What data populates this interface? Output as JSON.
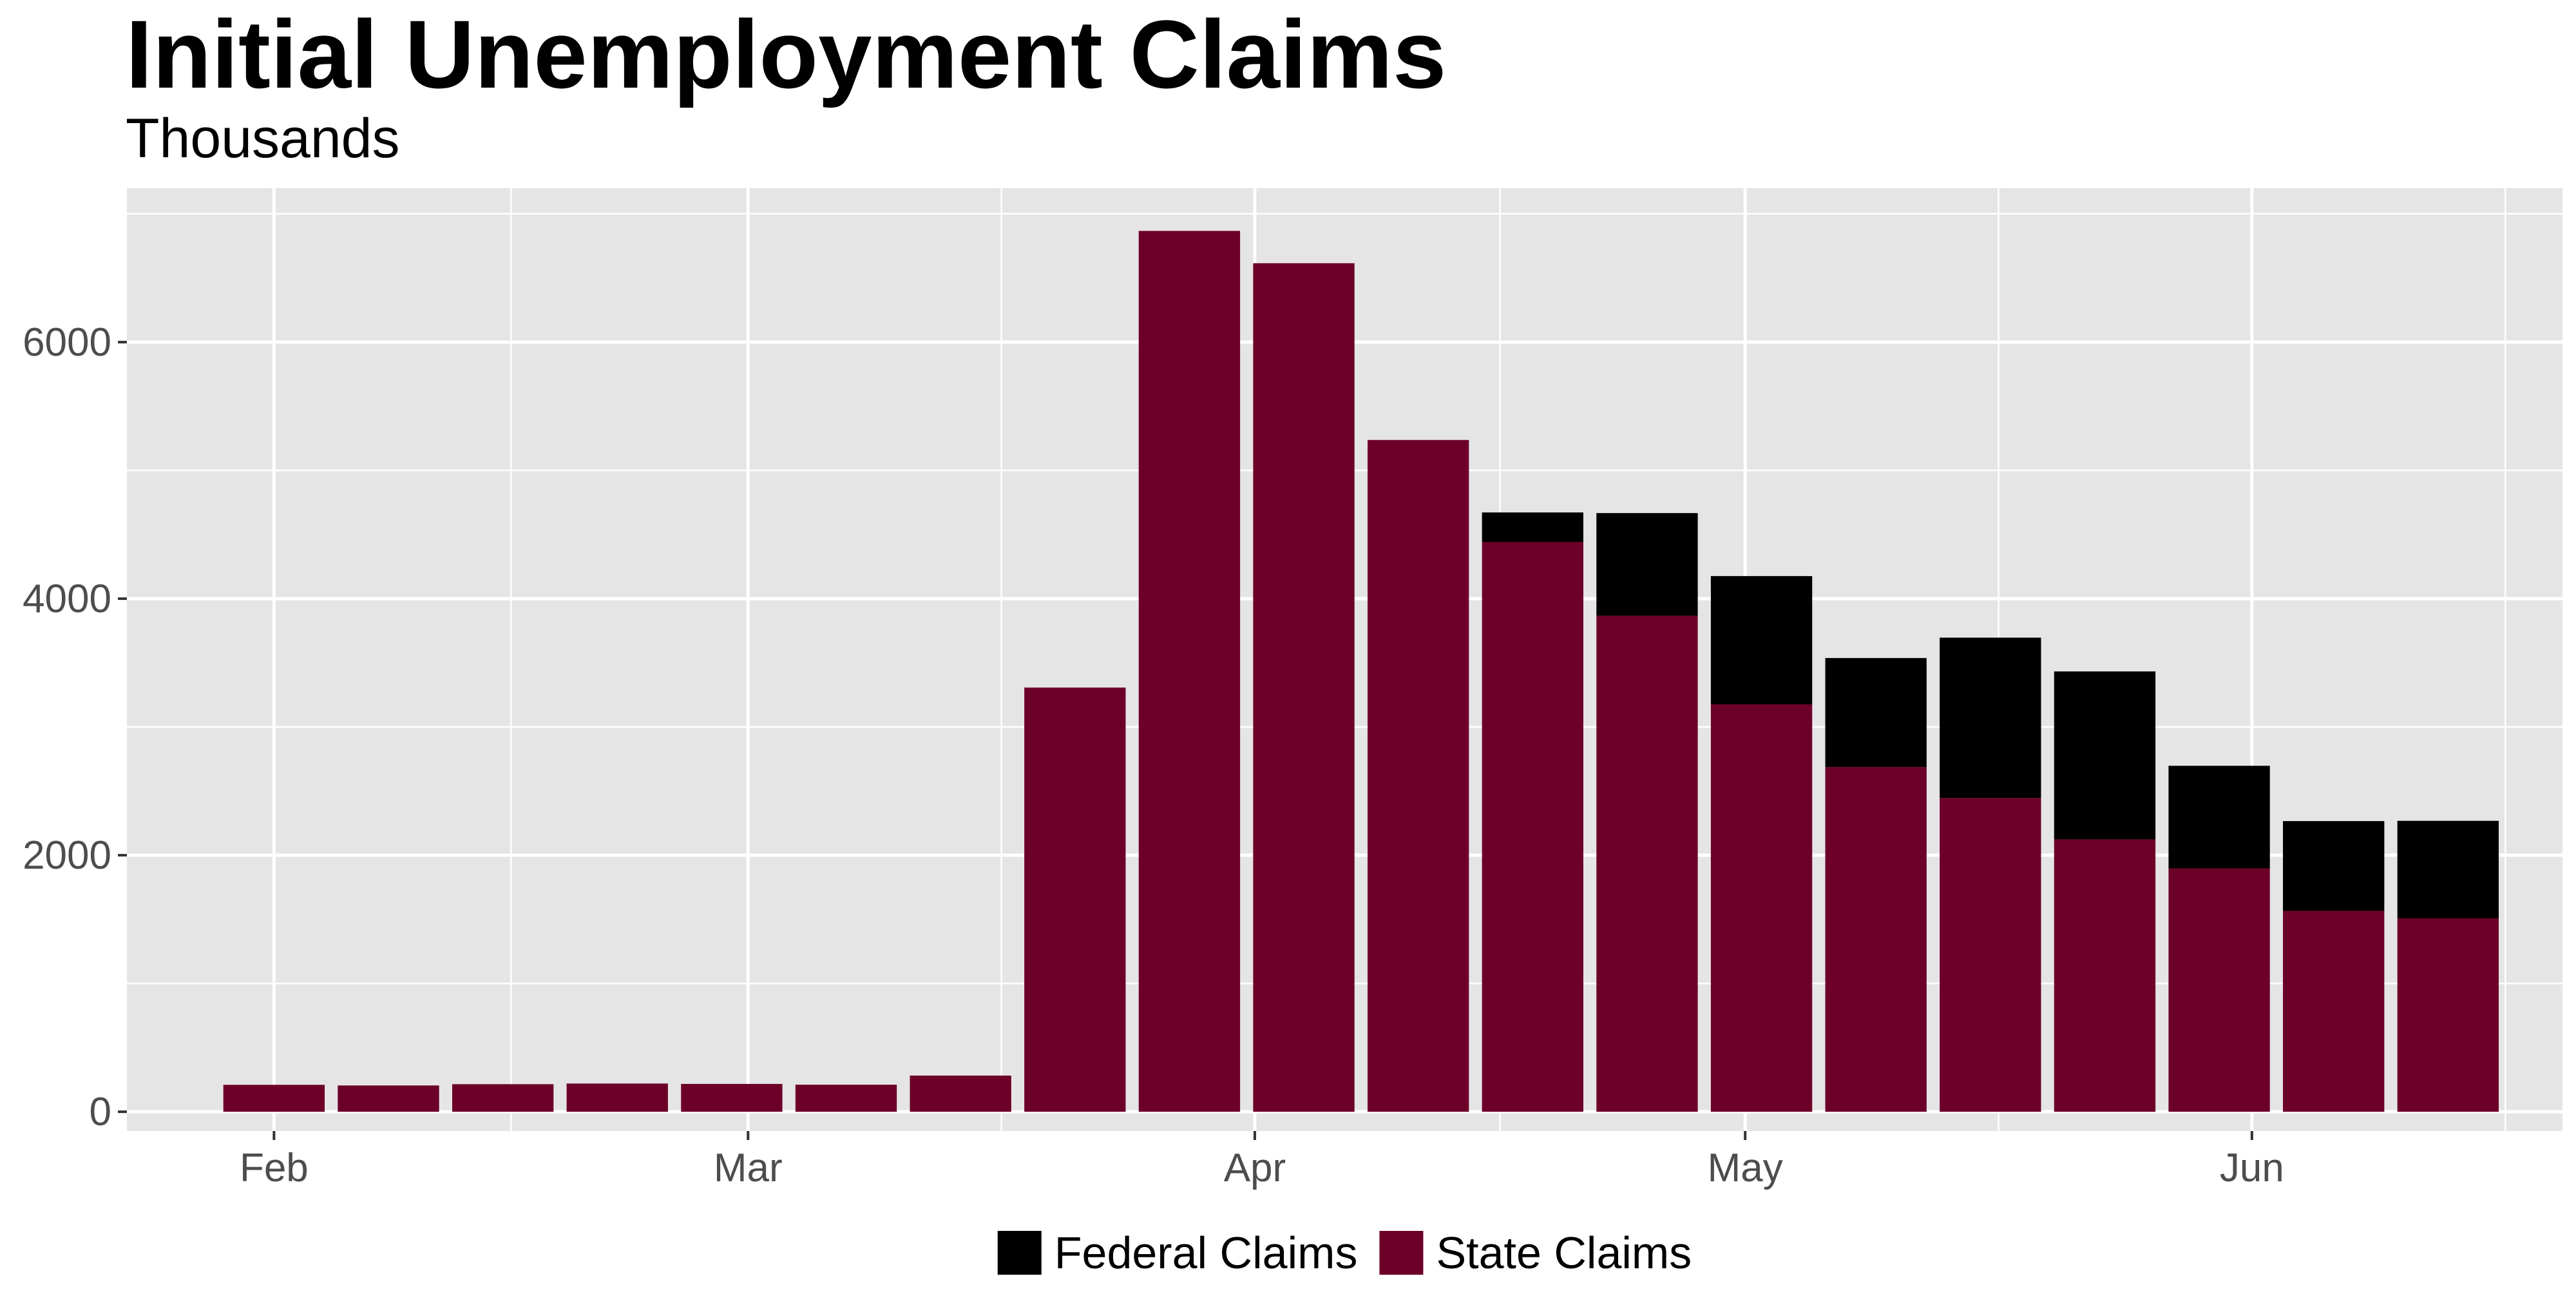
{
  "chart_data": {
    "type": "bar",
    "stacked": true,
    "title": "Initial Unemployment Claims",
    "subtitle": "Thousands",
    "xlabel": "",
    "ylabel": "",
    "x": [
      "2020-02-01",
      "2020-02-08",
      "2020-02-15",
      "2020-02-22",
      "2020-02-29",
      "2020-03-07",
      "2020-03-14",
      "2020-03-21",
      "2020-03-28",
      "2020-04-04",
      "2020-04-11",
      "2020-04-18",
      "2020-04-25",
      "2020-05-02",
      "2020-05-09",
      "2020-05-16",
      "2020-05-23",
      "2020-05-30",
      "2020-06-06",
      "2020-06-13"
    ],
    "series": [
      {
        "name": "State Claims",
        "color": "#6d0029",
        "values": [
          210,
          205,
          215,
          220,
          217,
          211,
          282,
          3307,
          6867,
          6615,
          5237,
          4442,
          3867,
          3176,
          2687,
          2446,
          2123,
          1897,
          1566,
          1508
        ]
      },
      {
        "name": "Federal Claims",
        "color": "#000000",
        "values": [
          0,
          0,
          0,
          0,
          0,
          0,
          0,
          0,
          0,
          0,
          0,
          230,
          800,
          1000,
          850,
          1250,
          1310,
          800,
          700,
          760
        ]
      }
    ],
    "ylim": [
      -150,
      7200
    ],
    "yticks": [
      0,
      2000,
      4000,
      6000
    ],
    "ytick_labels": [
      "0",
      "2000",
      "4000",
      "6000"
    ],
    "xticks": [
      "2020-02-01",
      "2020-03-01",
      "2020-04-01",
      "2020-05-01",
      "2020-06-01"
    ],
    "xtick_labels": [
      "Feb",
      "Mar",
      "Apr",
      "May",
      "Jun"
    ],
    "xlim": [
      "2020-01-23",
      "2020-06-20"
    ],
    "legend_position": "bottom",
    "legend": [
      {
        "label": "Federal Claims",
        "color": "#000000"
      },
      {
        "label": "State Claims",
        "color": "#6d0029"
      }
    ],
    "grid": true,
    "panel_background": "#e5e5e5",
    "gridline_color": "#ffffff"
  }
}
